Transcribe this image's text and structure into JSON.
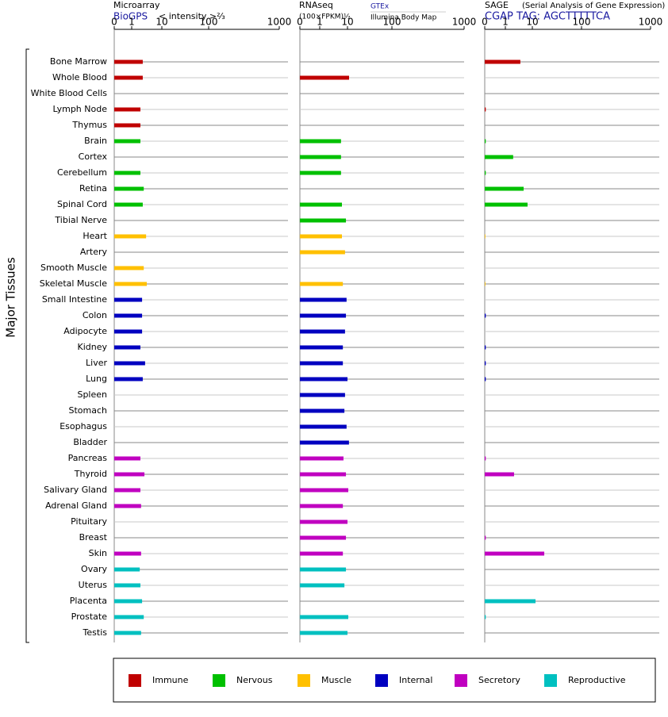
{
  "chart_data": {
    "type": "bar",
    "ylabel": "Major Tissues",
    "categories": [
      "Bone Marrow",
      "Whole Blood",
      "White Blood Cells",
      "Lymph Node",
      "Thymus",
      "Brain",
      "Cortex",
      "Cerebellum",
      "Retina",
      "Spinal Cord",
      "Tibial Nerve",
      "Heart",
      "Artery",
      "Smooth Muscle",
      "Skeletal Muscle",
      "Small Intestine",
      "Colon",
      "Adipocyte",
      "Kidney",
      "Liver",
      "Lung",
      "Spleen",
      "Stomach",
      "Esophagus",
      "Bladder",
      "Pancreas",
      "Thyroid",
      "Salivary Gland",
      "Adrenal Gland",
      "Pituitary",
      "Breast",
      "Skin",
      "Ovary",
      "Uterus",
      "Placenta",
      "Prostate",
      "Testis"
    ],
    "colors": [
      "#c00000",
      "#c00000",
      "#c00000",
      "#c00000",
      "#c00000",
      "#00c000",
      "#00c000",
      "#00c000",
      "#00c000",
      "#00c000",
      "#00c000",
      "#ffc000",
      "#ffc000",
      "#ffc000",
      "#ffc000",
      "#0000c0",
      "#0000c0",
      "#0000c0",
      "#0000c0",
      "#0000c0",
      "#0000c0",
      "#0000c0",
      "#0000c0",
      "#0000c0",
      "#0000c0",
      "#c000c0",
      "#c000c0",
      "#c000c0",
      "#c000c0",
      "#c000c0",
      "#c000c0",
      "#c000c0",
      "#00c0c0",
      "#00c0c0",
      "#00c0c0",
      "#00c0c0",
      "#00c0c0"
    ],
    "legend": [
      {
        "name": "Immune",
        "color": "#c00000"
      },
      {
        "name": "Nervous",
        "color": "#00c000"
      },
      {
        "name": "Muscle",
        "color": "#ffc000"
      },
      {
        "name": "Internal",
        "color": "#0000c0"
      },
      {
        "name": "Secretory",
        "color": "#c000c0"
      },
      {
        "name": "Reproductive",
        "color": "#00c0c0"
      }
    ],
    "panels": [
      {
        "title": "Microarray",
        "source": "BioGPS",
        "unit": "< intensity >⅔",
        "xlim": [
          0,
          1000
        ],
        "xticks": [
          0,
          1,
          10,
          100,
          1000
        ],
        "values": [
          4.3,
          4.3,
          null,
          3.6,
          3.6,
          3.6,
          null,
          3.6,
          4.6,
          4.3,
          null,
          5.3,
          null,
          4.6,
          5.5,
          4.1,
          4.1,
          4.1,
          3.6,
          5.0,
          4.3,
          null,
          null,
          null,
          null,
          3.6,
          4.8,
          3.6,
          3.8,
          null,
          null,
          3.8,
          3.4,
          3.6,
          4.1,
          4.6,
          3.8
        ]
      },
      {
        "title": "RNAseq",
        "unit": "(100×FPKM)½",
        "source": "GTEx",
        "source2": "Illumina Body Map",
        "xlim": [
          0,
          1000
        ],
        "xticks": [
          0,
          1,
          10,
          100,
          1000
        ],
        "values": [
          null,
          13.2,
          null,
          null,
          null,
          7.9,
          7.9,
          7.9,
          null,
          8.2,
          9.5,
          8.2,
          9.2,
          null,
          8.5,
          9.7,
          9.5,
          9.2,
          8.5,
          8.5,
          10,
          9.2,
          9.0,
          9.7,
          13,
          8.7,
          9.5,
          11.6,
          8.5,
          10,
          9.5,
          8.5,
          9.5,
          9.0,
          null,
          11.6,
          10
        ]
      },
      {
        "title": "SAGE",
        "subtitle": "(Serial Analysis of Gene Expression)",
        "source": "CGAP TAG: AGCTTTTTCA",
        "xlim": [
          0,
          1000
        ],
        "xticks": [
          0,
          1,
          10,
          100,
          1000
        ],
        "values": [
          6.0,
          null,
          null,
          0.05,
          null,
          0.05,
          3.6,
          0.05,
          7.1,
          8.4,
          null,
          0.02,
          null,
          null,
          0.02,
          null,
          0.05,
          null,
          0.05,
          0.05,
          0.05,
          null,
          null,
          null,
          null,
          0.05,
          3.9,
          null,
          null,
          null,
          0.05,
          31.8,
          null,
          null,
          15.8,
          0.05,
          null
        ]
      }
    ]
  }
}
